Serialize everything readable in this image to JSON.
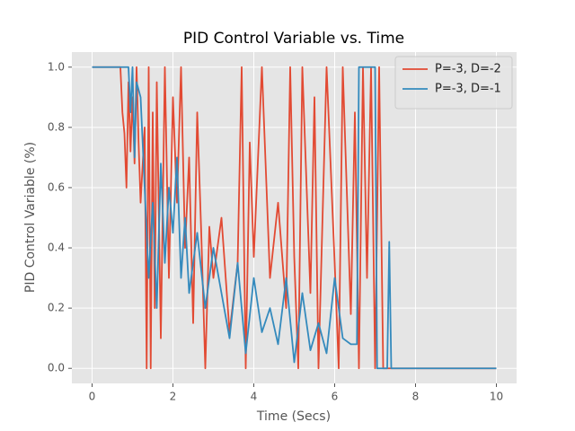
{
  "chart_data": {
    "type": "line",
    "title": "PID Control Variable vs. Time",
    "x_label": "Time (Secs)",
    "y_label": "PID Control Variable (%)",
    "xlim": [
      -0.5,
      10.5
    ],
    "ylim": [
      -0.05,
      1.05
    ],
    "xticks": [
      0,
      2,
      4,
      6,
      8,
      10
    ],
    "yticks": [
      {
        "value": 0,
        "label": "0.0"
      },
      0.2,
      0.4,
      0.6,
      0.8,
      {
        "value": 1,
        "label": "1.0"
      }
    ],
    "grid": true,
    "legend": "upper right",
    "series": [
      {
        "name": "P=-3, D=-2",
        "color": "#e24a33",
        "x": [
          0,
          0.7,
          0.75,
          0.8,
          0.85,
          0.9,
          0.95,
          1.0,
          1.05,
          1.1,
          1.15,
          1.2,
          1.3,
          1.35,
          1.4,
          1.45,
          1.5,
          1.55,
          1.6,
          1.7,
          1.8,
          1.9,
          2.0,
          2.1,
          2.2,
          2.3,
          2.4,
          2.5,
          2.6,
          2.7,
          2.8,
          2.9,
          3.0,
          3.2,
          3.4,
          3.6,
          3.7,
          3.8,
          3.9,
          4.0,
          4.2,
          4.4,
          4.6,
          4.8,
          4.9,
          5.0,
          5.1,
          5.2,
          5.4,
          5.5,
          5.6,
          5.8,
          6.0,
          6.1,
          6.2,
          6.4,
          6.5,
          6.6,
          6.7,
          6.8,
          6.9,
          7.0,
          7.1,
          7.2,
          10
        ],
        "values": [
          1,
          1,
          0.85,
          0.78,
          0.6,
          0.95,
          0.72,
          0.9,
          0.68,
          1,
          0.75,
          0.55,
          0.8,
          0,
          1,
          0,
          0.85,
          0.2,
          0.95,
          0.1,
          1,
          0.3,
          0.9,
          0.55,
          1,
          0.4,
          0.7,
          0.15,
          0.85,
          0.45,
          0,
          0.47,
          0.3,
          0.5,
          0.12,
          0.35,
          1,
          0,
          0.75,
          0.37,
          1,
          0.3,
          0.55,
          0.2,
          1,
          0.37,
          0,
          1,
          0.25,
          0.9,
          0,
          1,
          0.35,
          0,
          1,
          0.18,
          0.85,
          0,
          1,
          0.3,
          1,
          0,
          1,
          0,
          0
        ]
      },
      {
        "name": "P=-3, D=-1",
        "color": "#348abd",
        "x": [
          0,
          0.9,
          0.95,
          1.0,
          1.05,
          1.1,
          1.2,
          1.3,
          1.4,
          1.5,
          1.6,
          1.7,
          1.8,
          1.9,
          2.0,
          2.1,
          2.2,
          2.3,
          2.4,
          2.6,
          2.8,
          3.0,
          3.2,
          3.4,
          3.6,
          3.8,
          4.0,
          4.2,
          4.4,
          4.6,
          4.8,
          5.0,
          5.2,
          5.4,
          5.6,
          5.8,
          6.0,
          6.2,
          6.4,
          6.55,
          6.6,
          7.0,
          7.05,
          7.3,
          7.35,
          7.4,
          10
        ],
        "values": [
          1,
          1,
          0.85,
          1,
          0.7,
          0.95,
          0.9,
          0.6,
          0.3,
          0.55,
          0.2,
          0.68,
          0.35,
          0.6,
          0.45,
          0.7,
          0.3,
          0.5,
          0.25,
          0.45,
          0.2,
          0.4,
          0.25,
          0.1,
          0.35,
          0.05,
          0.3,
          0.12,
          0.2,
          0.08,
          0.3,
          0.02,
          0.25,
          0.06,
          0.15,
          0.05,
          0.3,
          0.1,
          0.08,
          0.08,
          1,
          1,
          0,
          0,
          0.42,
          0,
          0
        ]
      }
    ]
  }
}
